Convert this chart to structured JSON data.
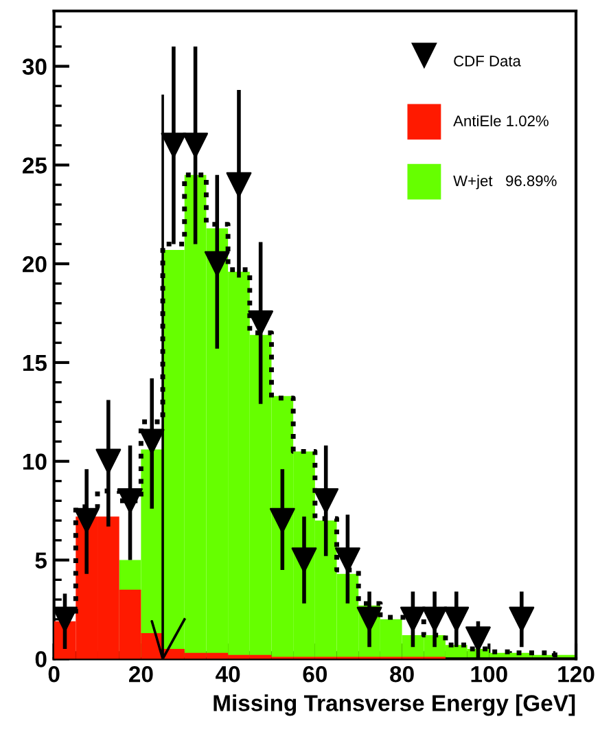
{
  "chart_data": {
    "type": "histogram",
    "xlabel": "Missing Transverse Energy [GeV]",
    "bins": [
      0,
      5,
      10,
      15,
      20,
      25,
      30,
      35,
      40,
      45,
      50,
      55,
      60,
      65,
      70,
      75,
      80,
      85,
      90,
      95,
      100,
      105,
      110,
      115,
      120
    ],
    "series": [
      {
        "name": "W+jet   96.89%",
        "color": "#66ff00",
        "values": [
          0,
          0,
          0,
          5.0,
          10.6,
          20.7,
          24.5,
          21.8,
          19.6,
          16.4,
          13.3,
          10.5,
          7.0,
          4.3,
          2.7,
          2.0,
          1.2,
          1.2,
          0.7,
          0.5,
          0.3,
          0.3,
          0.2,
          0.2
        ]
      },
      {
        "name": "AntiEle 1.02%",
        "color": "#ff1a00",
        "values": [
          1.9,
          7.2,
          7.2,
          3.5,
          1.3,
          0.5,
          0.3,
          0.3,
          0.2,
          0.2,
          0.1,
          0.1,
          0.1,
          0.1,
          0.1,
          0.1,
          0.1,
          0.1,
          0,
          0,
          0,
          0,
          0,
          0
        ]
      },
      {
        "type": "step",
        "color": "#000000",
        "line_style": "dotted",
        "x": [
          2.5,
          7.5,
          12.5,
          17.5,
          22.5,
          27.5,
          32.5,
          37.5,
          42.5,
          47.5,
          52.5,
          57.5,
          62.5,
          67.5,
          72.5,
          77.5,
          82.5,
          87.5,
          92.5,
          97.5,
          102.5,
          107.5,
          112.5,
          117.5
        ],
        "values": [
          2.2,
          7.7,
          8.5,
          8.0,
          12.0,
          21.0,
          24.5,
          22.0,
          19.7,
          16.5,
          13.2,
          10.5,
          7.1,
          4.5,
          2.8,
          2.1,
          2.1,
          1.2,
          0.7,
          0.5,
          0.35,
          0.3,
          0.3,
          0.2
        ]
      },
      {
        "type": "line",
        "color": "#000000",
        "line_style": "solid",
        "x": [
          30,
          25,
          22.5,
          25,
          25
        ],
        "values": [
          2.0,
          0,
          1.9,
          0,
          28.5
        ]
      },
      {
        "name": "CDF Data",
        "type": "scatter",
        "color": "#000000",
        "marker": "triangle",
        "x": [
          2.5,
          7.5,
          12.5,
          17.5,
          22.5,
          27.5,
          32.5,
          37.5,
          42.5,
          47.5,
          52.5,
          57.5,
          62.5,
          67.5,
          72.5,
          82.5,
          87.5,
          92.5,
          97.5,
          107.5
        ],
        "values": [
          2,
          7,
          10,
          8,
          11,
          26,
          26,
          20,
          24,
          17,
          7,
          5,
          8,
          5,
          2,
          2,
          2,
          2,
          1,
          2
        ],
        "errors": [
          [
            0.5,
            3.3
          ],
          [
            4.3,
            9.6
          ],
          [
            6.7,
            13.1
          ],
          [
            5.0,
            10.8
          ],
          [
            7.6,
            14.2
          ],
          [
            21.0,
            31.0
          ],
          [
            21.0,
            31.0
          ],
          [
            15.7,
            24.5
          ],
          [
            19.3,
            28.8
          ],
          [
            12.9,
            21.1
          ],
          [
            4.5,
            9.6
          ],
          [
            2.8,
            7.2
          ],
          [
            5.2,
            10.8
          ],
          [
            2.8,
            7.3
          ],
          [
            0.6,
            3.4
          ],
          [
            0.6,
            3.4
          ],
          [
            0.6,
            3.4
          ],
          [
            0.6,
            3.4
          ],
          [
            0,
            1.9
          ],
          [
            0.6,
            3.4
          ]
        ]
      }
    ],
    "xlim": [
      0,
      120
    ],
    "ylim": [
      0,
      32.8
    ],
    "xticks": [
      0,
      20,
      40,
      60,
      80,
      100,
      120
    ],
    "yticks": [
      0,
      5,
      10,
      15,
      20,
      25,
      30
    ],
    "grid": false,
    "legend": "top right"
  }
}
